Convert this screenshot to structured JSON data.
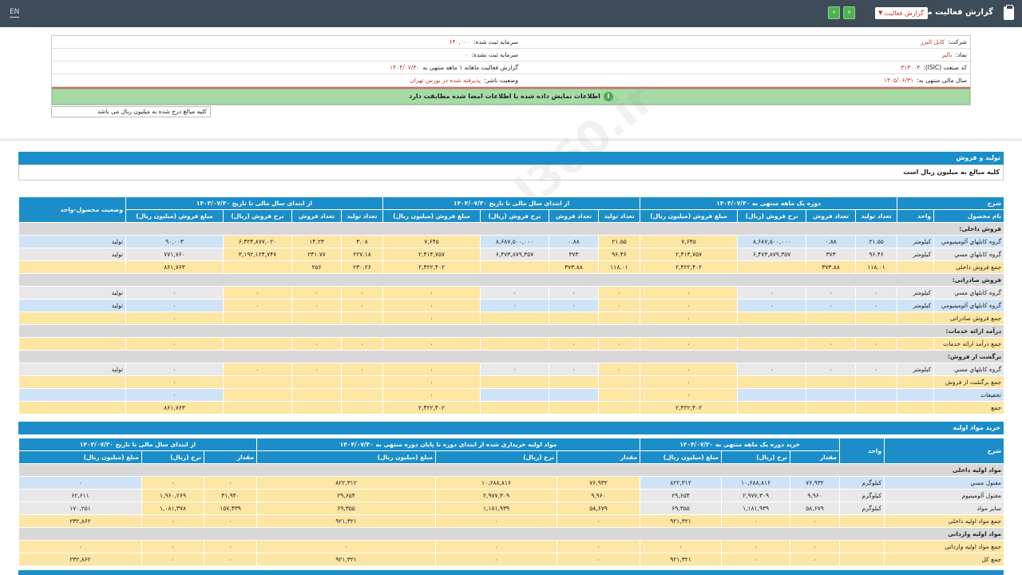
{
  "topbar": {
    "lang": "EN",
    "title": "گزارش فعالیت ماهانه",
    "select_value": "گزارش فعالیت"
  },
  "info": {
    "company_label": "شرکت:",
    "company": "کابل البرز",
    "capital_label": "سرمایه ثبت شده:",
    "capital": "۶۴۰,۰۰۰",
    "symbol_label": "نماد:",
    "symbol": "بالبر",
    "unreg_capital_label": "سرمایه ثبت نشده:",
    "unreg_capital": "۰",
    "isic_label": "کد صنعت (ISIC):",
    "isic": "۳۱۳۰۰۴",
    "report_label": "گزارش فعالیت ماهانه ۱ ماهه منتهی به",
    "report_date": "۱۴۰۴/۰۷/۳۰",
    "fy_label": "سال مالی منتهی به:",
    "fy": "۱۴۰۵/۰۶/۳۱",
    "status_label": "وضعیت ناشر:",
    "status": "پذیرفته شده در بورس تهران",
    "banner": "اطلاعات نمایش داده شده با اطلاعات امضا شده مطابقت دارد",
    "unit_note": "کلیه مبالغ درج شده به میلیون ریال می باشد"
  },
  "watermark": "@Codal360.ir",
  "prod": {
    "title": "تولید و فروش",
    "note": "کلیه مبالغ به میلیون ریال است",
    "h": {
      "desc": "شرح",
      "p1": "دوره یک ماهه منتهی به ۱۴۰۴/۰۷/۳۰",
      "p2": "از ابتدای سال مالی تا تاریخ ۱۴۰۴/۰۷/۳۰",
      "p3": "از ابتدای سال مالی تا تاریخ ۱۴۰۳/۰۷/۳۰",
      "status": "وضعیت محصول-واحد"
    },
    "sub": {
      "name": "نام محصول",
      "unit": "واحد",
      "qp": "تعداد تولید",
      "qs": "تعداد فروش",
      "rate": "نرخ فروش (ریال)",
      "amt": "مبلغ فروش (میلیون ریال)"
    },
    "rows": [
      {
        "t": "sec",
        "name": "فروش داخلی:"
      },
      {
        "t": "blue",
        "name": "گروه کابلهاي آلومينيومي",
        "unit": "كيلومتر",
        "v": [
          "۲۱.۵۵",
          "۰.۸۸",
          "۸,۶۸۷,۵۰۰,۰۰۰",
          "۷,۶۴۵",
          "۲۱.۵۵",
          "۰.۸۸",
          "۸,۶۸۷,۵۰۰,۰۰۰",
          "۷,۶۴۵",
          "۳.۰۸",
          "۱۴.۲۳",
          "۶,۳۲۴,۸۷۷,۰۲۰",
          "۹۰,۰۰۳"
        ],
        "st": "تولید"
      },
      {
        "t": "grey",
        "name": "گروه کابلهاي مسي",
        "unit": "كيلومتر",
        "v": [
          "۹۶.۴۶",
          "۳۷۳",
          "۶,۴۷۳,۸۷۹,۳۵۷",
          "۲,۴۱۴,۷۵۷",
          "۹۶.۴۶",
          "۳۷۳",
          "۶,۴۷۳,۸۷۹,۳۵۷",
          "۲,۴۱۴,۷۵۷",
          "۲۲۷.۱۸",
          "۲۴۱.۷۷",
          "۳,۱۹۲,۱۲۴,۷۴۷",
          "۷۷۱,۷۶۰"
        ],
        "st": "تولید"
      },
      {
        "t": "total",
        "name": "جمع فروش داخلی",
        "unit": "",
        "v": [
          "۱۱۸.۰۱",
          "۳۷۳.۸۸",
          "",
          "۲,۴۲۲,۴۰۲",
          "۱۱۸.۰۱",
          "۳۷۳.۸۸",
          "",
          "۲,۴۲۲,۴۰۲",
          "۲۳۰.۲۶",
          "۲۵۶",
          "",
          "۸۶۱,۷۶۳"
        ],
        "st": ""
      },
      {
        "t": "sec",
        "name": "فروش صادراتی:"
      },
      {
        "t": "grey",
        "name": "گروه کابلهاي مسي",
        "unit": "كيلومتر",
        "v": [
          "۰",
          "۰",
          "۰",
          "۰",
          "۰",
          "۰",
          "۰",
          "۰",
          "۰",
          "۰",
          "۰",
          "۰"
        ],
        "st": "تولید"
      },
      {
        "t": "blue",
        "name": "گروه کابلهاي آلومينيومي",
        "unit": "كيلومتر",
        "v": [
          "۰",
          "۰",
          "۰",
          "۰",
          "۰",
          "۰",
          "۰",
          "۰",
          "۰",
          "۰",
          "۰",
          "۰"
        ],
        "st": "تولید"
      },
      {
        "t": "total",
        "name": "جمع فروش صادراتی",
        "unit": "",
        "v": [
          "",
          "",
          "",
          "۰",
          "",
          "",
          "",
          "۰",
          "",
          "",
          "",
          "۰"
        ],
        "st": ""
      },
      {
        "t": "sec",
        "name": "درآمد ارائه خدمات:"
      },
      {
        "t": "total",
        "name": "جمع درآمد ارائه خدمات",
        "unit": "",
        "v": [
          "۰",
          "۰",
          "",
          "۰",
          "۰",
          "۰",
          "",
          "۰",
          "۰",
          "۰",
          "",
          "۰"
        ],
        "st": ""
      },
      {
        "t": "sec",
        "name": "برگشت از فروش:"
      },
      {
        "t": "grey",
        "name": "گروه کابلهاي مسي",
        "unit": "كيلومتر",
        "v": [
          "۰",
          "۰",
          "۰",
          "۰",
          "۰",
          "۰",
          "۰",
          "۰",
          "۰",
          "۰",
          "۰",
          "۰"
        ],
        "st": "تولید"
      },
      {
        "t": "total",
        "name": "جمع برگشت از فروش",
        "unit": "",
        "v": [
          "",
          "",
          "",
          "۰",
          "",
          "",
          "",
          "۰",
          "",
          "",
          "",
          "۰"
        ],
        "st": ""
      },
      {
        "t": "blue",
        "name": "تخفیفات",
        "unit": "",
        "v": [
          "",
          "",
          "",
          "۰",
          "",
          "",
          "",
          "۰",
          "",
          "",
          "",
          "۰"
        ],
        "st": ""
      },
      {
        "t": "total",
        "name": "جمع",
        "unit": "",
        "v": [
          "",
          "",
          "",
          "۲,۴۲۲,۴۰۲",
          "",
          "",
          "",
          "۲,۴۲۲,۴۰۲",
          "",
          "",
          "",
          "۸۶۱,۷۶۳"
        ],
        "st": ""
      }
    ]
  },
  "mat": {
    "title": "خرید مواد اولیه",
    "h": {
      "desc": "شرح",
      "unit": "واحد",
      "p1": "خرید دوره یک ماهه منتهی به ۱۴۰۴/۰۷/۳۰",
      "p2": "مواد اولیه خریداری شده از ابتدای دوره تا پایان دوره منتهی به ۱۴۰۴/۰۷/۳۰",
      "p3": "از ابتدای سال مالی تا تاریخ ۱۴۰۳/۰۷/۳۰"
    },
    "sub": {
      "q": "مقدار",
      "rate": "نرخ (ریال)",
      "amt": "مبلغ (میلیون ریال)"
    },
    "rows": [
      {
        "t": "sec",
        "name": "مواد اولیه داخلی"
      },
      {
        "t": "blue",
        "name": "مفتول مسي",
        "unit": "كيلوگرم",
        "v": [
          "۷۶,۹۳۲",
          "۱۰,۶۸۸,۸۱۶",
          "۸۲۲,۳۱۲",
          "۷۶,۹۳۲",
          "۱۰,۶۸۸,۸۱۶",
          "۸۲۲,۳۱۲",
          "۰",
          "۰",
          "۰"
        ]
      },
      {
        "t": "grey",
        "name": "مفتول آلومينيوم",
        "unit": "كيلوگرم",
        "v": [
          "۹,۹۶۰",
          "۲,۹۷۷,۳۰۹",
          "۲۹,۶۵۴",
          "۹,۹۶۰",
          "۲,۹۷۷,۳۰۹",
          "۲۹,۶۵۴",
          "۳۱,۹۴۰",
          "۱,۹۶۰,۲۶۹",
          "۶۲,۶۱۱"
        ]
      },
      {
        "t": "grey",
        "name": "ساير مواد",
        "unit": "كيلوگرم",
        "v": [
          "۵۸,۶۷۹",
          "۱,۱۸۱,۹۳۹",
          "۶۹,۳۵۵",
          "۵۸,۶۷۹",
          "۱,۱۸۱,۹۳۹",
          "۶۹,۳۵۵",
          "۱۵۷,۴۳۹",
          "۱,۰۸۱,۳۷۸",
          "۱۷۰,۲۵۱"
        ]
      },
      {
        "t": "total",
        "name": "جمع مواد اولیه داخلی",
        "unit": "",
        "v": [
          "۰",
          "۰",
          "۹۲۱,۳۲۱",
          "۰",
          "۰",
          "۹۲۱,۳۲۱",
          "۰",
          "۰",
          "۲۳۲,۸۶۲"
        ]
      },
      {
        "t": "sec",
        "name": "مواد اولیه وارداتی"
      },
      {
        "t": "total",
        "name": "جمع مواد اولیه وارداتی",
        "unit": "",
        "v": [
          "۰",
          "۰",
          "۰",
          "۰",
          "۰",
          "۰",
          "۰",
          "۰",
          "۰"
        ]
      },
      {
        "t": "total",
        "name": "جمع کل",
        "unit": "",
        "v": [
          "۰",
          "۰",
          "۹۲۱,۳۲۱",
          "۰",
          "۰",
          "۹۲۱,۳۲۱",
          "۰",
          "۰",
          "۲۳۲,۸۶۲"
        ]
      }
    ]
  }
}
